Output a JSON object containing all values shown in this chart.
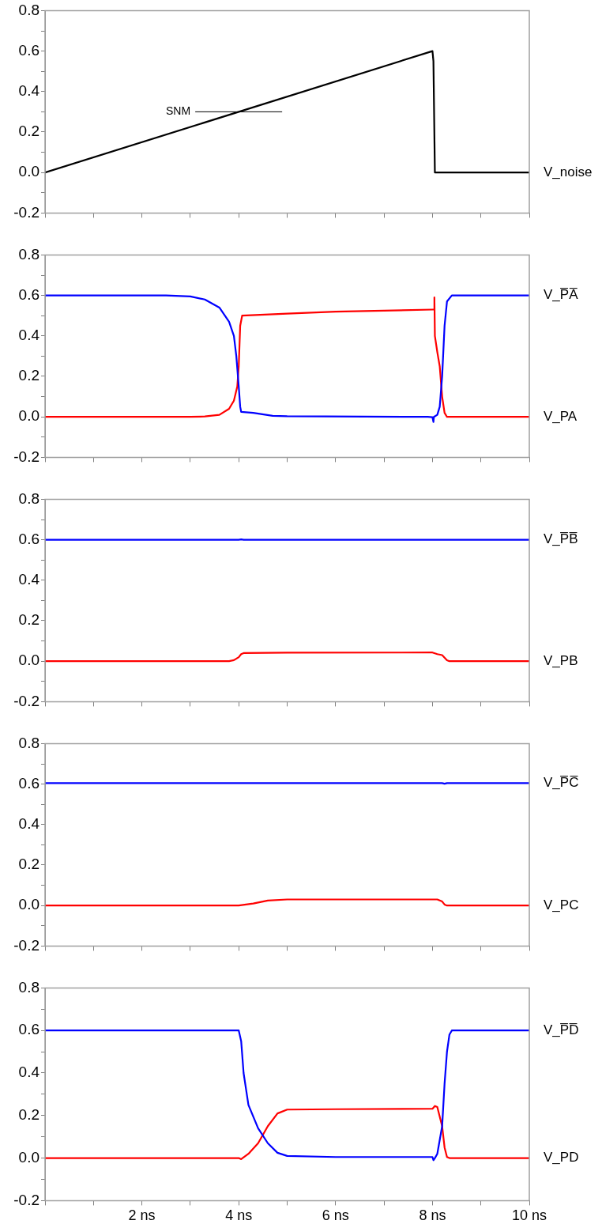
{
  "chart_data": [
    {
      "type": "line",
      "xlim": [
        0,
        10
      ],
      "xticks": [
        {
          "value": 0,
          "label": null
        },
        {
          "value": 1,
          "label": null
        },
        {
          "value": 2,
          "label": null
        },
        {
          "value": 3,
          "label": null
        },
        {
          "value": 4,
          "label": null
        },
        {
          "value": 5,
          "label": null
        },
        {
          "value": 6,
          "label": null
        },
        {
          "value": 7,
          "label": null
        },
        {
          "value": 8,
          "label": null
        },
        {
          "value": 9,
          "label": null
        },
        {
          "value": 10,
          "label": null
        }
      ],
      "ylim": [
        -0.2,
        0.8
      ],
      "yticks": [
        {
          "value": -0.2,
          "label": "-0.2"
        },
        {
          "value": -0.1,
          "label": null
        },
        {
          "value": 0,
          "label": "0.0"
        },
        {
          "value": 0.1,
          "label": null
        },
        {
          "value": 0.2,
          "label": "0.2"
        },
        {
          "value": 0.3,
          "label": null
        },
        {
          "value": 0.4,
          "label": "0.4"
        },
        {
          "value": 0.5,
          "label": null
        },
        {
          "value": 0.6,
          "label": "0.6"
        },
        {
          "value": 0.7,
          "label": null
        },
        {
          "value": 0.8,
          "label": "0.8"
        }
      ],
      "tick_labels": "y",
      "grid": false,
      "legend": false,
      "marker": "none",
      "annotations": [
        "SNM"
      ],
      "series": [
        {
          "name": "V_noise",
          "color": "#000000",
          "x": [
            0,
            8,
            8.02,
            8.05,
            10
          ],
          "values": [
            0,
            0.6,
            0.55,
            0,
            0
          ]
        }
      ]
    },
    {
      "type": "line",
      "xlim": [
        0,
        10
      ],
      "xticks": [
        {
          "value": 0,
          "label": null
        },
        {
          "value": 1,
          "label": null
        },
        {
          "value": 2,
          "label": null
        },
        {
          "value": 3,
          "label": null
        },
        {
          "value": 4,
          "label": null
        },
        {
          "value": 5,
          "label": null
        },
        {
          "value": 6,
          "label": null
        },
        {
          "value": 7,
          "label": null
        },
        {
          "value": 8,
          "label": null
        },
        {
          "value": 9,
          "label": null
        },
        {
          "value": 10,
          "label": null
        }
      ],
      "ylim": [
        -0.2,
        0.8
      ],
      "yticks": [
        {
          "value": -0.2,
          "label": "-0.2"
        },
        {
          "value": -0.1,
          "label": null
        },
        {
          "value": 0,
          "label": "0.0"
        },
        {
          "value": 0.1,
          "label": null
        },
        {
          "value": 0.2,
          "label": "0.2"
        },
        {
          "value": 0.3,
          "label": null
        },
        {
          "value": 0.4,
          "label": "0.4"
        },
        {
          "value": 0.5,
          "label": null
        },
        {
          "value": 0.6,
          "label": "0.6"
        },
        {
          "value": 0.7,
          "label": null
        },
        {
          "value": 0.8,
          "label": "0.8"
        }
      ],
      "tick_labels": "y",
      "grid": false,
      "legend": false,
      "marker": "none",
      "series": [
        {
          "name": "V_P̅A̅",
          "color": "#0000ff",
          "x": [
            0,
            2.5,
            3,
            3.3,
            3.6,
            3.8,
            3.9,
            3.95,
            4,
            4.03,
            4.05,
            4.3,
            4.7,
            5,
            7.9,
            8,
            8.02,
            8.03,
            8.1,
            8.15,
            8.2,
            8.25,
            8.3,
            8.4,
            10
          ],
          "values": [
            0.6,
            0.6,
            0.595,
            0.58,
            0.54,
            0.47,
            0.4,
            0.3,
            0.15,
            0.05,
            0.025,
            0.02,
            0.005,
            0.003,
            0,
            -0.002,
            -0.025,
            0,
            0.01,
            0.05,
            0.2,
            0.45,
            0.57,
            0.6,
            0.6
          ]
        },
        {
          "name": "V_PA",
          "color": "#ff0000",
          "x": [
            0,
            3,
            3.3,
            3.6,
            3.8,
            3.9,
            3.97,
            4,
            4.03,
            4.07,
            5,
            6,
            7,
            8,
            8.03,
            8.04,
            8.05,
            8.1,
            8.15,
            8.2,
            8.25,
            8.3,
            10
          ],
          "values": [
            0,
            0,
            0.002,
            0.01,
            0.04,
            0.08,
            0.15,
            0.25,
            0.45,
            0.5,
            0.51,
            0.52,
            0.525,
            0.53,
            0.53,
            0.59,
            0.4,
            0.32,
            0.25,
            0.1,
            0.02,
            0,
            0
          ]
        }
      ]
    },
    {
      "type": "line",
      "xlim": [
        0,
        10
      ],
      "xticks": [
        {
          "value": 0,
          "label": null
        },
        {
          "value": 1,
          "label": null
        },
        {
          "value": 2,
          "label": null
        },
        {
          "value": 3,
          "label": null
        },
        {
          "value": 4,
          "label": null
        },
        {
          "value": 5,
          "label": null
        },
        {
          "value": 6,
          "label": null
        },
        {
          "value": 7,
          "label": null
        },
        {
          "value": 8,
          "label": null
        },
        {
          "value": 9,
          "label": null
        },
        {
          "value": 10,
          "label": null
        }
      ],
      "ylim": [
        -0.2,
        0.8
      ],
      "yticks": [
        {
          "value": -0.2,
          "label": "-0.2"
        },
        {
          "value": -0.1,
          "label": null
        },
        {
          "value": 0,
          "label": "0.0"
        },
        {
          "value": 0.1,
          "label": null
        },
        {
          "value": 0.2,
          "label": "0.2"
        },
        {
          "value": 0.3,
          "label": null
        },
        {
          "value": 0.4,
          "label": "0.4"
        },
        {
          "value": 0.5,
          "label": null
        },
        {
          "value": 0.6,
          "label": "0.6"
        },
        {
          "value": 0.7,
          "label": null
        },
        {
          "value": 0.8,
          "label": "0.8"
        }
      ],
      "tick_labels": "y",
      "grid": false,
      "legend": false,
      "marker": "none",
      "series": [
        {
          "name": "V_P̅B̅",
          "color": "#0000ff",
          "x": [
            0,
            4,
            4.05,
            4.1,
            10
          ],
          "values": [
            0.6,
            0.6,
            0.602,
            0.6,
            0.6
          ]
        },
        {
          "name": "V_PB",
          "color": "#ff0000",
          "x": [
            0,
            3.8,
            3.9,
            4,
            4.05,
            4.1,
            5,
            8,
            8.1,
            8.2,
            8.3,
            8.35,
            10
          ],
          "values": [
            0,
            0,
            0.005,
            0.02,
            0.035,
            0.04,
            0.042,
            0.043,
            0.035,
            0.03,
            0.005,
            0,
            0
          ]
        }
      ]
    },
    {
      "type": "line",
      "xlim": [
        0,
        10
      ],
      "xticks": [
        {
          "value": 0,
          "label": null
        },
        {
          "value": 1,
          "label": null
        },
        {
          "value": 2,
          "label": null
        },
        {
          "value": 3,
          "label": null
        },
        {
          "value": 4,
          "label": null
        },
        {
          "value": 5,
          "label": null
        },
        {
          "value": 6,
          "label": null
        },
        {
          "value": 7,
          "label": null
        },
        {
          "value": 8,
          "label": null
        },
        {
          "value": 9,
          "label": null
        },
        {
          "value": 10,
          "label": null
        }
      ],
      "ylim": [
        -0.2,
        0.8
      ],
      "yticks": [
        {
          "value": -0.2,
          "label": "-0.2"
        },
        {
          "value": -0.1,
          "label": null
        },
        {
          "value": 0,
          "label": "0.0"
        },
        {
          "value": 0.1,
          "label": null
        },
        {
          "value": 0.2,
          "label": "0.2"
        },
        {
          "value": 0.3,
          "label": null
        },
        {
          "value": 0.4,
          "label": "0.4"
        },
        {
          "value": 0.5,
          "label": null
        },
        {
          "value": 0.6,
          "label": "0.6"
        },
        {
          "value": 0.7,
          "label": null
        },
        {
          "value": 0.8,
          "label": "0.8"
        }
      ],
      "tick_labels": "y",
      "grid": false,
      "legend": false,
      "marker": "none",
      "series": [
        {
          "name": "V_P̅C̅",
          "color": "#0000ff",
          "x": [
            0,
            8.2,
            8.25,
            8.3,
            10
          ],
          "values": [
            0.605,
            0.605,
            0.602,
            0.605,
            0.605
          ]
        },
        {
          "name": "V_PC",
          "color": "#ff0000",
          "x": [
            0,
            4,
            4.3,
            4.6,
            5,
            8.1,
            8.2,
            8.25,
            8.3,
            10
          ],
          "values": [
            0,
            0,
            0.01,
            0.025,
            0.03,
            0.03,
            0.02,
            0.005,
            0,
            0
          ]
        }
      ]
    },
    {
      "type": "line",
      "xlim": [
        0,
        10
      ],
      "xticks": [
        {
          "value": 0,
          "label": null
        },
        {
          "value": 1,
          "label": null
        },
        {
          "value": 2,
          "label": "2 ns"
        },
        {
          "value": 3,
          "label": null
        },
        {
          "value": 4,
          "label": "4 ns"
        },
        {
          "value": 5,
          "label": null
        },
        {
          "value": 6,
          "label": "6 ns"
        },
        {
          "value": 7,
          "label": null
        },
        {
          "value": 8,
          "label": "8 ns"
        },
        {
          "value": 9,
          "label": null
        },
        {
          "value": 10,
          "label": "10 ns"
        }
      ],
      "ylim": [
        -0.2,
        0.8
      ],
      "yticks": [
        {
          "value": -0.2,
          "label": "-0.2"
        },
        {
          "value": -0.1,
          "label": null
        },
        {
          "value": 0,
          "label": "0.0"
        },
        {
          "value": 0.1,
          "label": null
        },
        {
          "value": 0.2,
          "label": "0.2"
        },
        {
          "value": 0.3,
          "label": null
        },
        {
          "value": 0.4,
          "label": "0.4"
        },
        {
          "value": 0.5,
          "label": null
        },
        {
          "value": 0.6,
          "label": "0.6"
        },
        {
          "value": 0.7,
          "label": null
        },
        {
          "value": 0.8,
          "label": "0.8"
        }
      ],
      "grid": false,
      "legend": false,
      "marker": "none",
      "series": [
        {
          "name": "V_P̅D̅",
          "color": "#0000ff",
          "x": [
            0,
            4,
            4.05,
            4.1,
            4.2,
            4.4,
            4.6,
            4.8,
            5,
            6,
            8,
            8.02,
            8.05,
            8.1,
            8.2,
            8.25,
            8.3,
            8.35,
            8.4,
            10
          ],
          "values": [
            0.6,
            0.6,
            0.55,
            0.4,
            0.25,
            0.14,
            0.07,
            0.025,
            0.01,
            0.005,
            0.005,
            -0.01,
            0,
            0.02,
            0.15,
            0.35,
            0.5,
            0.58,
            0.6,
            0.6
          ]
        },
        {
          "name": "V_PD",
          "color": "#ff0000",
          "x": [
            0,
            4,
            4.05,
            4.2,
            4.4,
            4.6,
            4.8,
            5,
            6,
            8,
            8.05,
            8.1,
            8.2,
            8.25,
            8.3,
            8.35,
            10
          ],
          "values": [
            0,
            0,
            -0.005,
            0.02,
            0.07,
            0.15,
            0.21,
            0.228,
            0.23,
            0.232,
            0.245,
            0.24,
            0.15,
            0.05,
            0.005,
            0,
            0
          ]
        }
      ]
    }
  ]
}
